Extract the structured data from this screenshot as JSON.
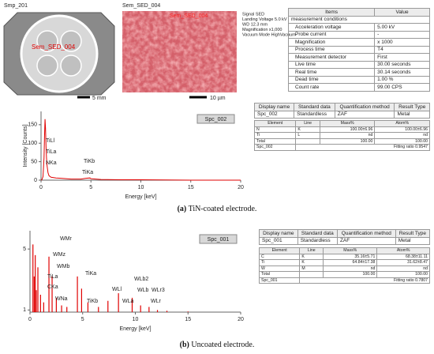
{
  "images": [
    {
      "label": "Smp_201",
      "overlay": "Sem_SED_004",
      "scale": "5 mm"
    },
    {
      "label": "Sem_SED_004",
      "overlay": "Sem_SED_004",
      "scale": "10 µm"
    }
  ],
  "sem_info": [
    "Signal SED",
    "Landing Voltage 5.0 kV",
    "WD 12.3 mm",
    "Magnification x1,000",
    "Vacuum Mode HighVacuum"
  ],
  "conditions_table": {
    "header": [
      "Items",
      "Value"
    ],
    "section": "measurement conditions",
    "rows": [
      [
        "Acceleration voltage",
        "5.00 kV"
      ],
      [
        "Probe current",
        "-"
      ],
      [
        "Magnification",
        "x 1000"
      ],
      [
        "Process time",
        "T4"
      ],
      [
        "Measurement detector",
        "First"
      ],
      [
        "Live time",
        "30.00 seconds"
      ],
      [
        "Real time",
        "30.14 seconds"
      ],
      [
        "Dead time",
        "1.00 %"
      ],
      [
        "Count rate",
        "99.00 CPS"
      ]
    ]
  },
  "chart_data": [
    {
      "type": "line",
      "spectrum_name": "Spc_002",
      "x_label": "Energy [keV]",
      "y_label": "Intensity [Counts]",
      "color": "#e00000",
      "annotations": [
        "TiLl",
        "TiLa",
        "NKa",
        "TiKb",
        "TiKa"
      ],
      "x": [
        0,
        0.1,
        0.2,
        0.3,
        0.35,
        0.4,
        0.45,
        0.5,
        0.55,
        0.6,
        0.7,
        0.8,
        1,
        1.5,
        2,
        2.5,
        3,
        4,
        4.5,
        4.9,
        5,
        6,
        8,
        10,
        15,
        20
      ],
      "values": [
        0,
        2,
        10,
        60,
        120,
        165,
        140,
        90,
        60,
        40,
        20,
        12,
        8,
        6,
        5,
        4,
        3,
        3,
        5,
        6,
        4,
        2,
        1,
        1,
        0,
        0
      ],
      "xlim": [
        0,
        20
      ],
      "xticks": [
        0,
        5,
        10,
        15,
        20
      ],
      "ylim": [
        0,
        186
      ],
      "yticks": [
        0,
        50,
        100,
        150
      ]
    },
    {
      "type": "bar",
      "spectrum_name": "Spc_001",
      "x_label": "Energy [keV]",
      "color": "#e00000",
      "annotations": [
        "WMr",
        "WMz",
        "WMb",
        "TiLa",
        "CKa",
        "WNa",
        "TiKa",
        "TiKb",
        "WLl",
        "WLa",
        "WLb2",
        "WLb",
        "WLr3",
        "WLr"
      ],
      "x": [
        0.28,
        0.4,
        0.5,
        0.6,
        0.75,
        1.0,
        1.3,
        1.8,
        2.1,
        2.5,
        3.0,
        3.5,
        4.5,
        4.9,
        5.5,
        6.5,
        7.4,
        8.4,
        9.7,
        10.5,
        11.3,
        12.1,
        13,
        15
      ],
      "values": [
        5.3,
        3.2,
        4.6,
        2.3,
        3.8,
        2.0,
        1.5,
        4.5,
        3.2,
        1.8,
        1.3,
        1.2,
        3.2,
        2.4,
        1.5,
        1.2,
        1.6,
        2.1,
        1.8,
        1.3,
        1.2,
        1.0,
        0.95,
        0.9
      ],
      "xlim": [
        0,
        20
      ],
      "xticks": [
        0,
        5,
        10,
        15,
        20
      ],
      "ylim": [
        0.86,
        6.2
      ],
      "yticks": [
        1,
        5
      ]
    }
  ],
  "panels": [
    {
      "caption_label": "(a)",
      "caption": "TiN-coated electrode.",
      "method_table": {
        "header": [
          "Display name",
          "Standard data",
          "Quantification method",
          "Result Type"
        ],
        "rows": [
          [
            "Spc_002",
            "Standardless",
            "ZAF",
            "Metal"
          ]
        ]
      },
      "results_table": {
        "header": [
          "Element",
          "Line",
          "Mass%",
          "Atom%"
        ],
        "rows": [
          [
            "N",
            "K",
            "100.00±6.96",
            "100.00±6.96"
          ],
          [
            "Ti",
            "L",
            "nd",
            "nd"
          ],
          [
            "Total",
            "",
            "100.00",
            "100.00"
          ]
        ],
        "footer": [
          "Spc_002",
          "Fitting ratio 0.9547"
        ]
      }
    },
    {
      "caption_label": "(b)",
      "caption": "Uncoated electrode.",
      "method_table": {
        "header": [
          "Display name",
          "Standard data",
          "Quantification method",
          "Result Type"
        ],
        "rows": [
          [
            "Spc_001",
            "Standardless",
            "ZAF",
            "Metal"
          ]
        ]
      },
      "results_table": {
        "header": [
          "Element",
          "Line",
          "Mass%",
          "Atom%"
        ],
        "rows": [
          [
            "C",
            "K",
            "35.16±5.71",
            "68.38±11.11"
          ],
          [
            "Ti",
            "K",
            "64.84±17.38",
            "31.62±8.47"
          ],
          [
            "W",
            "M",
            "nd",
            "nd"
          ],
          [
            "Total",
            "",
            "100.00",
            "100.00"
          ]
        ],
        "footer": [
          "Spc_001",
          "Fitting ratio 0.7807"
        ]
      }
    }
  ]
}
